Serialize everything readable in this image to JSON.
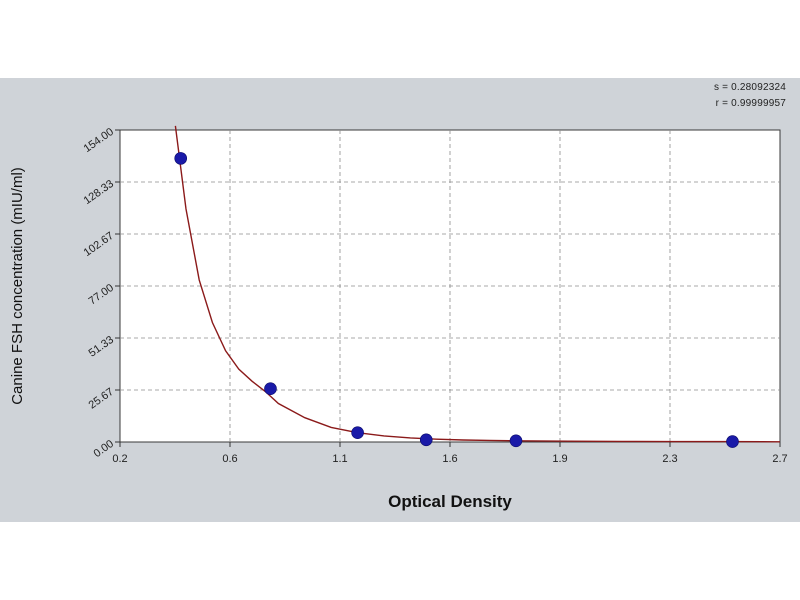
{
  "stats": {
    "s_line": "s = 0.28092324",
    "r_line": "r = 0.99999957"
  },
  "colors": {
    "panel_bg": "#cfd3d8",
    "plot_bg": "#ffffff",
    "curve": "#8b1a1a",
    "points": "#1a1aa8",
    "grid": "#8c8c8c"
  },
  "chart_data": {
    "type": "scatter",
    "title": "",
    "xlabel": "Optical Density",
    "ylabel": "Canine FSH concentration (mIU/ml)",
    "xlim": [
      0.2,
      2.7
    ],
    "ylim": [
      0,
      154.0
    ],
    "x_ticks": [
      "0.2",
      "0.6",
      "1.1",
      "1.6",
      "1.9",
      "2.3",
      "2.7"
    ],
    "y_ticks": [
      "0.00",
      "25.67",
      "51.33",
      "77.00",
      "102.67",
      "128.33",
      "154.00"
    ],
    "grid": true,
    "series": [
      {
        "type": "scatter",
        "x": [
          0.43,
          0.77,
          1.1,
          1.36,
          1.7,
          2.52
        ],
        "y": [
          140.0,
          26.3,
          4.6,
          1.1,
          0.6,
          0.2
        ]
      },
      {
        "type": "line",
        "x": [
          0.41,
          0.45,
          0.5,
          0.55,
          0.6,
          0.65,
          0.7,
          0.75,
          0.8,
          0.85,
          0.9,
          1.0,
          1.1,
          1.2,
          1.3,
          1.4,
          1.5,
          1.6,
          1.7,
          1.9,
          2.1,
          2.3,
          2.5,
          2.7
        ],
        "y": [
          156.0,
          115.0,
          80.0,
          59.0,
          45.0,
          36.0,
          30.0,
          25.0,
          19.0,
          15.5,
          12.0,
          7.2,
          4.6,
          3.0,
          2.0,
          1.4,
          1.0,
          0.8,
          0.6,
          0.4,
          0.3,
          0.2,
          0.2,
          0.1
        ]
      }
    ]
  }
}
